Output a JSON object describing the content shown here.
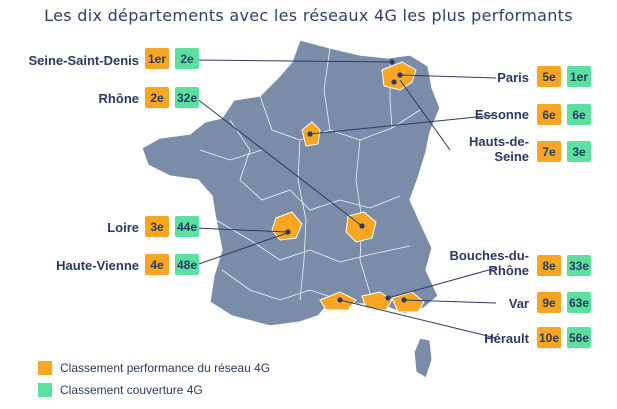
{
  "title": "Les dix départements avec les réseaux 4G les plus performants",
  "colors": {
    "performance": "#f6a623",
    "coverage": "#5ce0a0",
    "map_fill": "#7b8ca8",
    "text": "#2b3a63"
  },
  "departments": [
    {
      "name": "Seine-Saint-Denis",
      "perf": "1er",
      "cov": "2e"
    },
    {
      "name": "Rhône",
      "perf": "2e",
      "cov": "32e"
    },
    {
      "name": "Loire",
      "perf": "3e",
      "cov": "44e"
    },
    {
      "name": "Haute-Vienne",
      "perf": "4e",
      "cov": "48e"
    },
    {
      "name": "Paris",
      "perf": "5e",
      "cov": "1er"
    },
    {
      "name": "Essonne",
      "perf": "6e",
      "cov": "6e"
    },
    {
      "name": "Hauts-de-Seine",
      "perf": "7e",
      "cov": "3e"
    },
    {
      "name": "Bouches-du-Rhône",
      "perf": "8e",
      "cov": "33e"
    },
    {
      "name": "Var",
      "perf": "9e",
      "cov": "63e"
    },
    {
      "name": "Hérault",
      "perf": "10e",
      "cov": "56e"
    }
  ],
  "legend": {
    "performance": "Classement performance du réseau 4G",
    "coverage": "Classement couverture 4G"
  }
}
